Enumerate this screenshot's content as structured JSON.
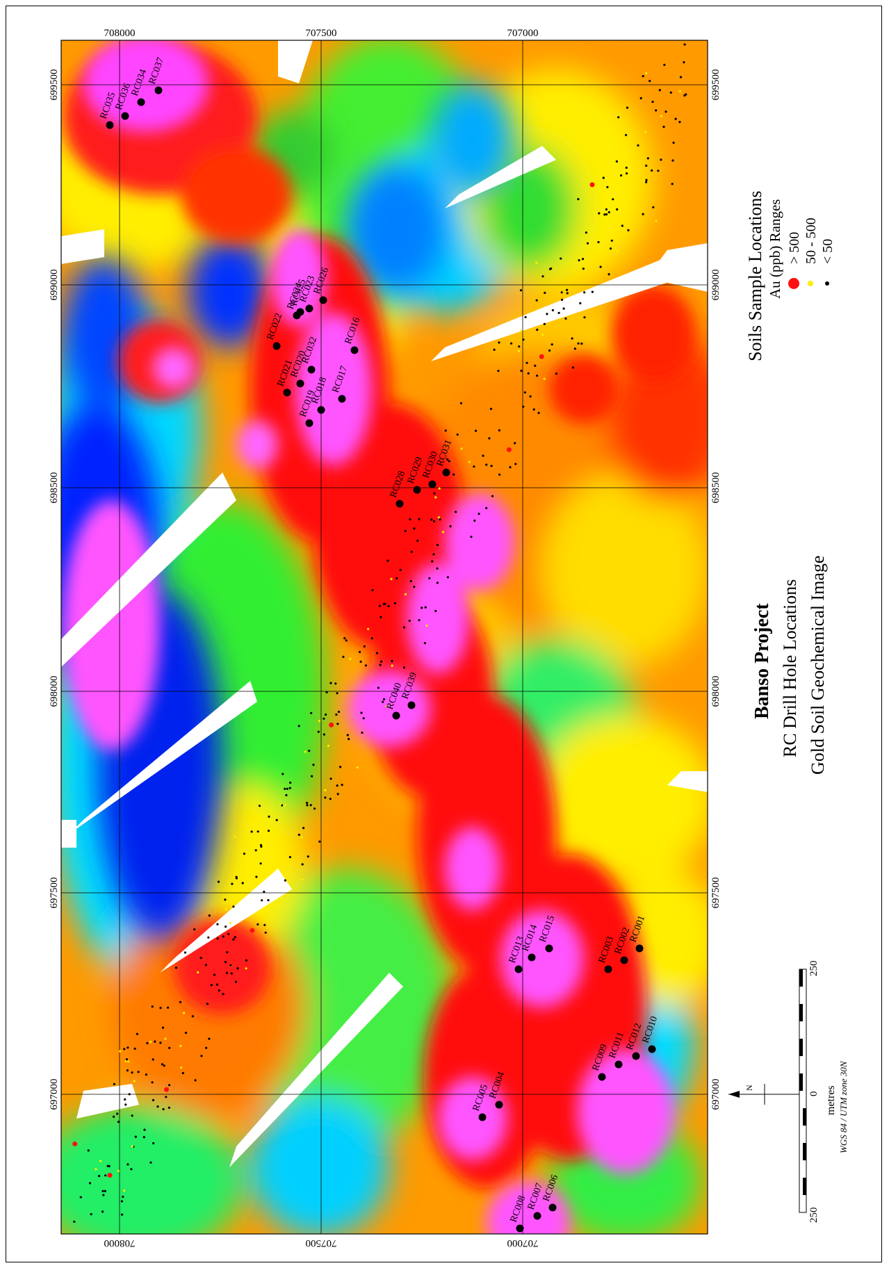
{
  "title": {
    "project": "Banso Project",
    "line2": "RC Drill Hole Locations",
    "line3": "Gold Soil Geochemical Image"
  },
  "legend": {
    "heading": "Soils Sample Locations",
    "subheading": "Au (ppb) Ranges",
    "items": [
      {
        "label": "> 500",
        "color": "#ff1010"
      },
      {
        "label": "50  -  500",
        "color": "#ffee00"
      },
      {
        "label": "< 50",
        "color": "#000000"
      }
    ]
  },
  "scale_bar": {
    "left_label": "250",
    "zero_label": "0",
    "right_label": "250",
    "units": "metres",
    "projection": "WGS 84 / UTM zone 30N"
  },
  "north_arrow": {
    "label": "N"
  },
  "grid_labels": {
    "top": [
      "708000",
      "707500",
      "707000"
    ],
    "left_side": [
      "699500",
      "699000",
      "698500",
      "698000",
      "697500",
      "697000"
    ],
    "right_side": [
      "699500",
      "699000",
      "698500",
      "698000",
      "697500",
      "697000"
    ],
    "bottom": [
      "708000",
      "707500",
      "707000"
    ]
  },
  "drill_holes": [
    {
      "id": "RC035"
    },
    {
      "id": "RC036"
    },
    {
      "id": "RC034"
    },
    {
      "id": "RC037"
    },
    {
      "id": "RC022"
    },
    {
      "id": "RC024"
    },
    {
      "id": "RC025"
    },
    {
      "id": "RC023"
    },
    {
      "id": "RC026"
    },
    {
      "id": "RC021"
    },
    {
      "id": "RC020"
    },
    {
      "id": "RC032"
    },
    {
      "id": "RC016"
    },
    {
      "id": "RC017"
    },
    {
      "id": "RC018"
    },
    {
      "id": "RC019"
    },
    {
      "id": "RC028"
    },
    {
      "id": "RC029"
    },
    {
      "id": "RC030"
    },
    {
      "id": "RC031"
    },
    {
      "id": "RC040"
    },
    {
      "id": "RC039"
    },
    {
      "id": "RC013"
    },
    {
      "id": "RC014"
    },
    {
      "id": "RC015"
    },
    {
      "id": "RC003"
    },
    {
      "id": "RC002"
    },
    {
      "id": "RC001"
    },
    {
      "id": "RC009"
    },
    {
      "id": "RC011"
    },
    {
      "id": "RC012"
    },
    {
      "id": "RC010"
    },
    {
      "id": "RC005"
    },
    {
      "id": "RC004"
    },
    {
      "id": "RC008"
    },
    {
      "id": "RC007"
    },
    {
      "id": "RC006"
    }
  ],
  "colors": {
    "very_high": "#ff55ff",
    "high": "#ff1a1a",
    "mid_high": "#ff8c00",
    "mid": "#ffff00",
    "mid_low": "#33ff33",
    "low": "#00e5ff",
    "very_low": "#0033ff",
    "no_data": "#ffffff"
  }
}
